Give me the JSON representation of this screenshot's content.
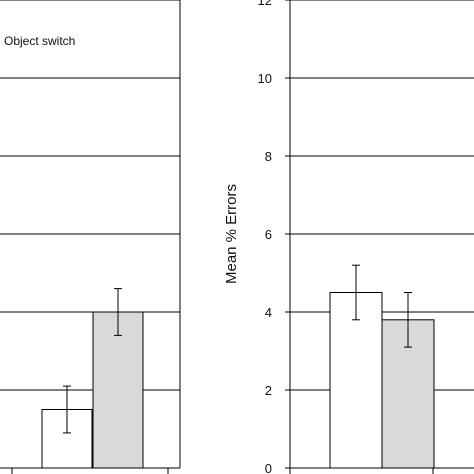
{
  "chart_data": [
    {
      "type": "bar",
      "panel": "left",
      "legend": [
        "Object switch"
      ],
      "series": [
        {
          "name": "",
          "values": [
            null,
            1.5
          ],
          "errors": [
            null,
            0.6
          ],
          "color": "#ffffff"
        },
        {
          "name": "Object switch",
          "values": [
            null,
            4.0
          ],
          "errors": [
            null,
            0.6
          ],
          "color": "#d9d9d9"
        }
      ],
      "ylim": [
        0,
        12
      ],
      "grid": true
    },
    {
      "type": "bar",
      "panel": "right",
      "ylabel": "Mean % Errors",
      "yticks": [
        "0",
        "2",
        "4",
        "6",
        "8",
        "10",
        "12"
      ],
      "series": [
        {
          "name": "",
          "values": [
            4.5
          ],
          "errors": [
            0.7
          ],
          "color": "#ffffff"
        },
        {
          "name": "",
          "values": [
            3.8
          ],
          "errors": [
            0.7
          ],
          "color": "#d9d9d9"
        }
      ],
      "ylim": [
        0,
        12
      ],
      "grid": true
    }
  ]
}
